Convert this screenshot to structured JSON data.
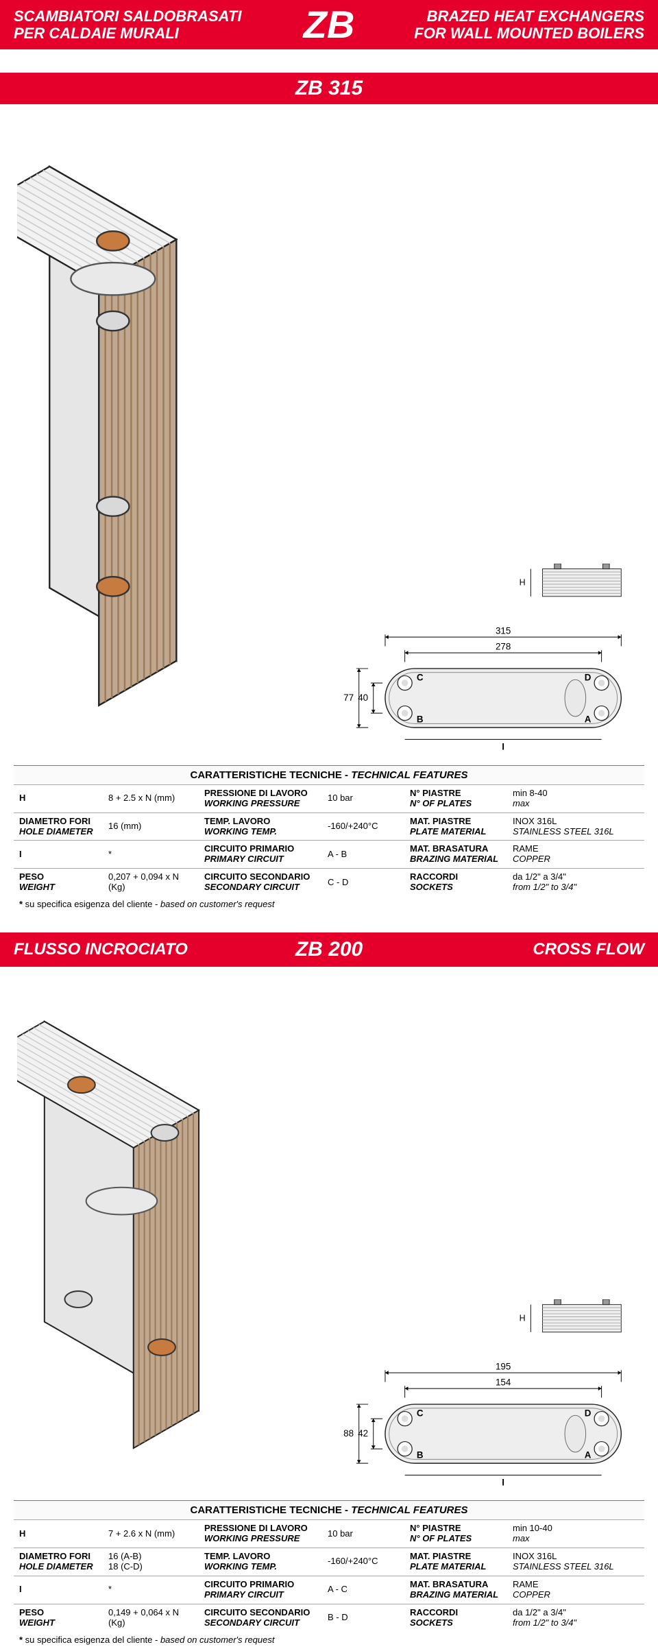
{
  "colors": {
    "banner_bg": "#e4002b",
    "banner_fg": "#ffffff",
    "rule": "#aaaaaa"
  },
  "top_banner": {
    "left_line1": "SCAMBIATORI SALDOBRASATI",
    "left_line2": "PER CALDAIE MURALI",
    "center": "ZB",
    "right_line1": "BRAZED HEAT EXCHANGERS",
    "right_line2": "FOR WALL MOUNTED BOILERS"
  },
  "sections": [
    {
      "banner": {
        "type": "single",
        "center": "ZB 315"
      },
      "diagram": {
        "outer_w": 315,
        "inner_w": 278,
        "outer_h": 77,
        "inner_h": 40,
        "labels": {
          "A": "A",
          "B": "B",
          "C": "C",
          "D": "D",
          "I": "I",
          "H": "H"
        }
      },
      "features_header": {
        "it": "CARATTERISTICHE TECNICHE - ",
        "en": "TECHNICAL FEATURES"
      },
      "rows": [
        {
          "c1": {
            "it": "H",
            "en": ""
          },
          "c2": "8 + 2.5 x N (mm)",
          "c3": {
            "it": "PRESSIONE DI LAVORO",
            "en": "WORKING PRESSURE"
          },
          "c4": "10 bar",
          "c5": {
            "it": "N° PIASTRE",
            "en": "N° OF PLATES"
          },
          "c6": {
            "l1": "min 8-40",
            "l2": "max"
          }
        },
        {
          "c1": {
            "it": "DIAMETRO FORI",
            "en": "HOLE DIAMETER"
          },
          "c2": "16 (mm)",
          "c3": {
            "it": "TEMP. LAVORO",
            "en": "WORKING TEMP."
          },
          "c4": "-160/+240°C",
          "c5": {
            "it": "MAT. PIASTRE",
            "en": "PLATE MATERIAL"
          },
          "c6": {
            "l1": "INOX 316L",
            "l2": "STAINLESS STEEL 316L"
          }
        },
        {
          "c1": {
            "it": "I",
            "en": ""
          },
          "c2": "*",
          "c3": {
            "it": "CIRCUITO PRIMARIO",
            "en": "PRIMARY CIRCUIT"
          },
          "c4": "A - B",
          "c5": {
            "it": "MAT. BRASATURA",
            "en": "BRAZING MATERIAL"
          },
          "c6": {
            "l1": "RAME",
            "l2": "COPPER"
          }
        },
        {
          "c1": {
            "it": "PESO",
            "en": "WEIGHT"
          },
          "c2": "0,207 + 0,094 x N\n(Kg)",
          "c3": {
            "it": "CIRCUITO SECONDARIO",
            "en": "SECONDARY CIRCUIT"
          },
          "c4": "C - D",
          "c5": {
            "it": "RACCORDI",
            "en": "SOCKETS"
          },
          "c6": {
            "l1": "da 1/2\" a 3/4\"",
            "l2": "from 1/2\" to 3/4\""
          }
        }
      ],
      "footnote": {
        "star": "*",
        "it": "su specifica esigenza del cliente - ",
        "en": "based on customer's request"
      }
    },
    {
      "banner": {
        "type": "three",
        "left": "FLUSSO INCROCIATO",
        "center": "ZB 200",
        "right": "CROSS FLOW"
      },
      "diagram": {
        "outer_w": 195,
        "inner_w": 154,
        "outer_h": 88,
        "inner_h": 42,
        "labels": {
          "A": "A",
          "B": "B",
          "C": "C",
          "D": "D",
          "I": "I",
          "H": "H"
        }
      },
      "features_header": {
        "it": "CARATTERISTICHE TECNICHE - ",
        "en": "TECHNICAL FEATURES"
      },
      "rows": [
        {
          "c1": {
            "it": "H",
            "en": ""
          },
          "c2": "7 + 2.6 x N (mm)",
          "c3": {
            "it": "PRESSIONE DI LAVORO",
            "en": "WORKING PRESSURE"
          },
          "c4": "10 bar",
          "c5": {
            "it": "N° PIASTRE",
            "en": "N° OF PLATES"
          },
          "c6": {
            "l1": "min 10-40",
            "l2": "max"
          }
        },
        {
          "c1": {
            "it": "DIAMETRO FORI",
            "en": "HOLE DIAMETER"
          },
          "c2": "16 (A-B)\n18 (C-D)",
          "c3": {
            "it": "TEMP. LAVORO",
            "en": "WORKING TEMP."
          },
          "c4": "-160/+240°C",
          "c5": {
            "it": "MAT. PIASTRE",
            "en": "PLATE MATERIAL"
          },
          "c6": {
            "l1": "INOX 316L",
            "l2": "STAINLESS STEEL 316L"
          }
        },
        {
          "c1": {
            "it": "I",
            "en": ""
          },
          "c2": "*",
          "c3": {
            "it": "CIRCUITO PRIMARIO",
            "en": "PRIMARY CIRCUIT"
          },
          "c4": "A - C",
          "c5": {
            "it": "MAT. BRASATURA",
            "en": "BRAZING MATERIAL"
          },
          "c6": {
            "l1": "RAME",
            "l2": "COPPER"
          }
        },
        {
          "c1": {
            "it": "PESO",
            "en": "WEIGHT"
          },
          "c2": "0,149 + 0,064 x N\n(Kg)",
          "c3": {
            "it": "CIRCUITO SECONDARIO",
            "en": "SECONDARY CIRCUIT"
          },
          "c4": "B - D",
          "c5": {
            "it": "RACCORDI",
            "en": "SOCKETS"
          },
          "c6": {
            "l1": "da 1/2\" a 3/4\"",
            "l2": "from 1/2\" to 3/4\""
          }
        }
      ],
      "footnote": {
        "star": "*",
        "it": "su specifica esigenza del cliente - ",
        "en": "based on customer's request"
      }
    }
  ]
}
